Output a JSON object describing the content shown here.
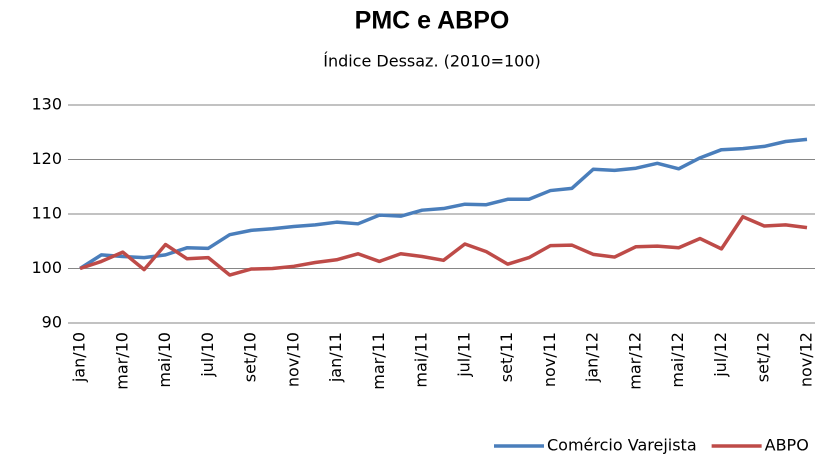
{
  "chart_data": {
    "type": "line",
    "title": "PMC e ABPO",
    "subtitle": "Índice Dessaz. (2010=100)",
    "categories": [
      "jan/10",
      null,
      "mar/10",
      null,
      "mai/10",
      null,
      "jul/10",
      null,
      "set/10",
      null,
      "nov/10",
      null,
      "jan/11",
      null,
      "mar/11",
      null,
      "mai/11",
      null,
      "jul/11",
      null,
      "set/11",
      null,
      "nov/11",
      null,
      "jan/12",
      null,
      "mar/12",
      null,
      "mai/12",
      null,
      "jul/12",
      null,
      "set/12",
      null,
      "nov/12"
    ],
    "series": [
      {
        "name": "Comércio Varejista",
        "color": "#4a7ebb",
        "values": [
          100,
          102.5,
          102.2,
          102.0,
          102.5,
          103.8,
          103.7,
          106.2,
          107.0,
          107.3,
          107.7,
          108.0,
          108.5,
          108.2,
          109.8,
          109.6,
          110.7,
          111.0,
          111.8,
          111.7,
          112.7,
          112.7,
          114.3,
          114.7,
          118.2,
          118.0,
          118.4,
          119.3,
          118.3,
          120.3,
          121.8,
          122.0,
          122.4,
          123.3,
          123.7
        ]
      },
      {
        "name": "ABPO",
        "color": "#be4b48",
        "values": [
          100,
          101.3,
          103.0,
          99.8,
          104.4,
          101.8,
          102.0,
          98.8,
          99.9,
          100.0,
          100.4,
          101.1,
          101.6,
          102.7,
          101.3,
          102.7,
          102.2,
          101.5,
          104.5,
          103.1,
          100.8,
          102.0,
          104.2,
          104.3,
          102.6,
          102.1,
          104.0,
          104.1,
          103.8,
          105.5,
          103.6,
          109.5,
          107.8,
          108.0,
          107.5
        ]
      }
    ],
    "ylim": [
      90,
      130
    ],
    "yticks": [
      90,
      100,
      110,
      120,
      130
    ],
    "grid": true,
    "legend": "bottom-right"
  }
}
